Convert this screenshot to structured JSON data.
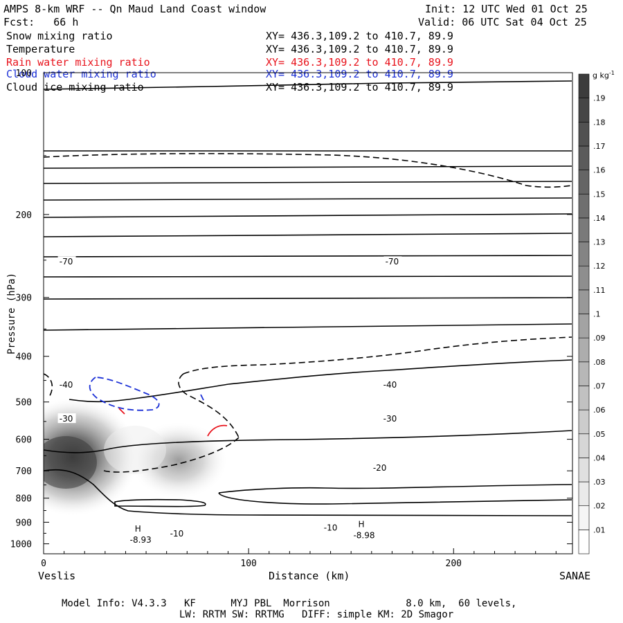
{
  "header": {
    "title": "AMPS 8-km WRF -- Qn Maud Land Coast window",
    "forecast": "Fcst:   66 h",
    "init": "Init: 12 UTC Wed 01 Oct 25",
    "valid": "Valid: 06 UTC Sat 04 Oct 25"
  },
  "fields": [
    {
      "name": "Snow mixing ratio",
      "xy": "XY= 436.3,109.2 to 410.7, 89.9",
      "color": "#000000"
    },
    {
      "name": "Temperature",
      "xy": "XY= 436.3,109.2 to 410.7, 89.9",
      "color": "#000000"
    },
    {
      "name": "Rain water mixing ratio",
      "xy": "XY= 436.3,109.2 to 410.7, 89.9",
      "color": "#e8121b"
    },
    {
      "name": "Cloud water mixing ratio",
      "xy": "XY= 436.3,109.2 to 410.7, 89.9",
      "color": "#1a2fd6"
    },
    {
      "name": "Cloud ice mixing ratio",
      "xy": "XY= 436.3,109.2 to 410.7, 89.9",
      "color": "#000000"
    }
  ],
  "footer": {
    "model_info": "Model Info: V4.3.3   KF      MYJ PBL  Morrison             8.0 km,  60 levels,",
    "schemes": "LW: RRTM SW: RRTMG   DIFF: simple KM: 2D Smagor"
  },
  "chart_data": {
    "type": "contour",
    "xlabel": "Distance (km)",
    "ylabel": "Pressure (hPa)",
    "x_ticks": [
      0,
      100,
      200
    ],
    "y_ticks": [
      200,
      300,
      400,
      500,
      600,
      700,
      800,
      900,
      1000
    ],
    "y_top_label": "100",
    "xlim": [
      0,
      258
    ],
    "ylim": [
      1050,
      100
    ],
    "y_scale": "log",
    "left_endpoint": "Veslis",
    "right_endpoint": "SANAE",
    "colorbar": {
      "unit": "g kg",
      "unit_sup": "-1",
      "ticks": [
        ".01",
        ".02",
        ".03",
        ".04",
        ".05",
        ".06",
        ".07",
        ".08",
        ".09",
        ".1",
        ".11",
        ".12",
        ".13",
        ".14",
        ".15",
        ".16",
        ".17",
        ".18",
        ".19"
      ],
      "shading_color": "#3c3c3c"
    },
    "contour_labels": [
      "-70",
      "-70",
      "-40",
      "-40",
      "-30",
      "-30",
      "-20",
      "-10",
      "-10",
      "H",
      "-8.93",
      "H",
      "-8.98"
    ],
    "extrema": [
      {
        "type": "H",
        "value": -8.93,
        "x_km": 46,
        "p_hPa": 962
      },
      {
        "type": "H",
        "value": -8.98,
        "x_km": 155,
        "p_hPa": 940
      }
    ],
    "isotherm_labels": [
      {
        "value": -70,
        "x_km": 11,
        "p_hPa": 252
      },
      {
        "value": -70,
        "x_km": 170,
        "p_hPa": 252
      },
      {
        "value": -40,
        "x_km": 11,
        "p_hPa": 460
      },
      {
        "value": -40,
        "x_km": 169,
        "p_hPa": 460
      },
      {
        "value": -30,
        "x_km": 11,
        "p_hPa": 543
      },
      {
        "value": -30,
        "x_km": 169,
        "p_hPa": 543
      },
      {
        "value": -20,
        "x_km": 164,
        "p_hPa": 690
      },
      {
        "value": -10,
        "x_km": 140,
        "p_hPa": 925
      },
      {
        "value": -10,
        "x_km": 65,
        "p_hPa": 952
      }
    ]
  }
}
